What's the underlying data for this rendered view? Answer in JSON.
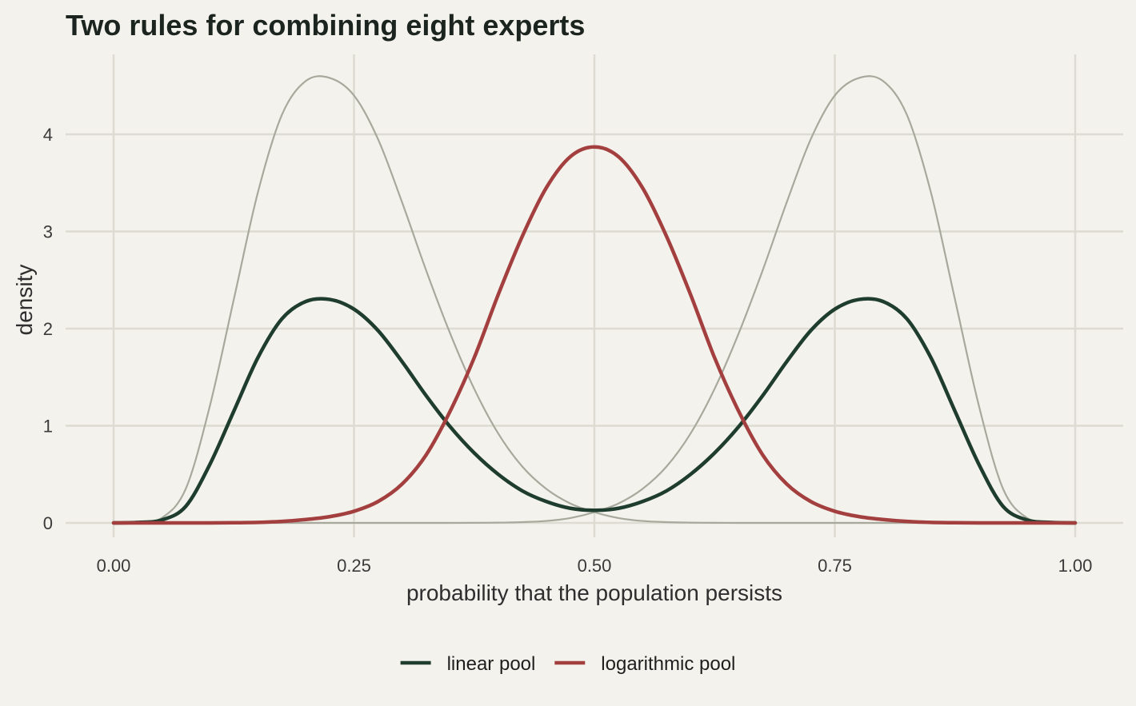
{
  "chart_data": {
    "type": "line",
    "title": "Two rules for combining eight experts",
    "xlabel": "probability that the population persists",
    "ylabel": "density",
    "xlim": [
      0,
      1
    ],
    "ylim": [
      0,
      4.6
    ],
    "x_ticks": [
      0,
      0.25,
      0.5,
      0.75,
      1
    ],
    "x_tick_labels": [
      "0.00",
      "0.25",
      "0.50",
      "0.75",
      "1.00"
    ],
    "y_ticks": [
      0,
      1,
      2,
      3,
      4
    ],
    "y_tick_labels": [
      "0",
      "1",
      "2",
      "3",
      "4"
    ],
    "grid": true,
    "legend_position": "bottom",
    "x": [
      0,
      0.025,
      0.05,
      0.075,
      0.1,
      0.125,
      0.15,
      0.175,
      0.2,
      0.225,
      0.25,
      0.275,
      0.3,
      0.325,
      0.35,
      0.375,
      0.4,
      0.425,
      0.45,
      0.475,
      0.5,
      0.525,
      0.55,
      0.575,
      0.6,
      0.625,
      0.65,
      0.675,
      0.7,
      0.725,
      0.75,
      0.775,
      0.8,
      0.825,
      0.85,
      0.875,
      0.9,
      0.925,
      0.95,
      0.975,
      1
    ],
    "series": [
      {
        "name": "",
        "role": "expert",
        "color": "#a8a99d",
        "values": [
          0,
          0.001,
          0.05,
          0.35,
          1.2,
          2.3,
          3.4,
          4.2,
          4.55,
          4.58,
          4.4,
          3.95,
          3.3,
          2.6,
          1.95,
          1.38,
          0.92,
          0.58,
          0.35,
          0.2,
          0.11,
          0.05,
          0.02,
          0.008,
          0.003,
          0.001,
          0,
          0,
          0,
          0,
          0,
          0,
          0,
          0,
          0,
          0,
          0,
          0,
          0,
          0,
          0
        ]
      },
      {
        "name": "",
        "role": "expert",
        "color": "#a8a99d",
        "values": [
          0,
          0,
          0,
          0,
          0,
          0,
          0,
          0,
          0,
          0,
          0,
          0,
          0,
          0,
          0,
          0.001,
          0.003,
          0.008,
          0.02,
          0.05,
          0.11,
          0.2,
          0.35,
          0.58,
          0.92,
          1.38,
          1.95,
          2.6,
          3.3,
          3.95,
          4.4,
          4.58,
          4.55,
          4.2,
          3.4,
          2.3,
          1.2,
          0.35,
          0.05,
          0.001,
          0
        ]
      },
      {
        "name": "linear pool",
        "role": "pooled",
        "color": "#1f3d2e",
        "values": [
          0,
          0.005,
          0.03,
          0.17,
          0.6,
          1.15,
          1.7,
          2.1,
          2.28,
          2.3,
          2.2,
          1.98,
          1.66,
          1.31,
          0.99,
          0.72,
          0.5,
          0.33,
          0.22,
          0.15,
          0.13,
          0.15,
          0.22,
          0.33,
          0.5,
          0.72,
          0.99,
          1.31,
          1.66,
          1.98,
          2.2,
          2.3,
          2.28,
          2.1,
          1.7,
          1.15,
          0.6,
          0.17,
          0.03,
          0.005,
          0
        ]
      },
      {
        "name": "logarithmic pool",
        "role": "pooled",
        "color": "#a3403f",
        "values": [
          0,
          0,
          0,
          0,
          0,
          0.002,
          0.005,
          0.015,
          0.035,
          0.065,
          0.12,
          0.22,
          0.4,
          0.7,
          1.15,
          1.7,
          2.35,
          2.95,
          3.45,
          3.77,
          3.87,
          3.77,
          3.45,
          2.95,
          2.35,
          1.7,
          1.15,
          0.7,
          0.4,
          0.22,
          0.12,
          0.065,
          0.035,
          0.015,
          0.005,
          0.002,
          0,
          0,
          0,
          0,
          0
        ]
      }
    ]
  }
}
